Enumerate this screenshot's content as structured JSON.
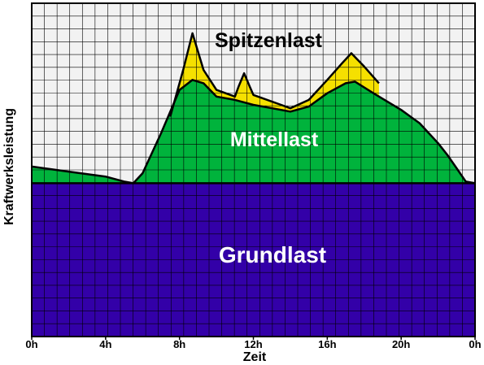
{
  "chart_data": {
    "type": "area",
    "xlabel": "Zeit",
    "ylabel": "Kraftwerksleistung",
    "x_ticks": [
      "0h",
      "4h",
      "8h",
      "12h",
      "16h",
      "20h",
      "0h"
    ],
    "xlim": [
      0,
      24
    ],
    "ylim": [
      0,
      10
    ],
    "grid": true,
    "layers": [
      {
        "name": "Grundlast",
        "color": "#3300a8",
        "x": [
          0,
          24
        ],
        "y": [
          4.6,
          4.6
        ]
      },
      {
        "name": "Mittellast",
        "color": "#00b33c",
        "x": [
          0,
          2,
          4,
          5,
          5.5,
          6,
          7,
          8,
          8.7,
          9.3,
          10,
          11,
          12,
          13.5,
          14,
          15,
          16,
          17,
          17.5,
          18.5,
          20,
          21,
          22,
          22.5,
          23,
          23.5,
          24
        ],
        "y": [
          5.1,
          4.95,
          4.8,
          4.65,
          4.6,
          4.9,
          6.1,
          7.4,
          7.7,
          7.6,
          7.2,
          7.1,
          6.95,
          6.8,
          6.75,
          6.9,
          7.3,
          7.6,
          7.65,
          7.3,
          6.8,
          6.4,
          5.8,
          5.45,
          5.05,
          4.65,
          4.6
        ]
      },
      {
        "name": "Spitzenlast",
        "color": "#f5e000",
        "x": [
          7.5,
          8.2,
          8.7,
          9.3,
          10,
          11,
          11.2,
          11.5,
          11.8,
          12,
          13.5,
          14,
          15,
          16,
          16.8,
          17.3,
          18,
          18.8
        ],
        "y": [
          6.6,
          8.0,
          9.1,
          8.0,
          7.4,
          7.2,
          7.5,
          7.9,
          7.5,
          7.25,
          6.95,
          6.85,
          7.1,
          7.7,
          8.2,
          8.5,
          8.1,
          7.6
        ]
      }
    ],
    "labels": {
      "base": "Grundlast",
      "medium": "Mittellast",
      "peak": "Spitzenlast"
    }
  }
}
